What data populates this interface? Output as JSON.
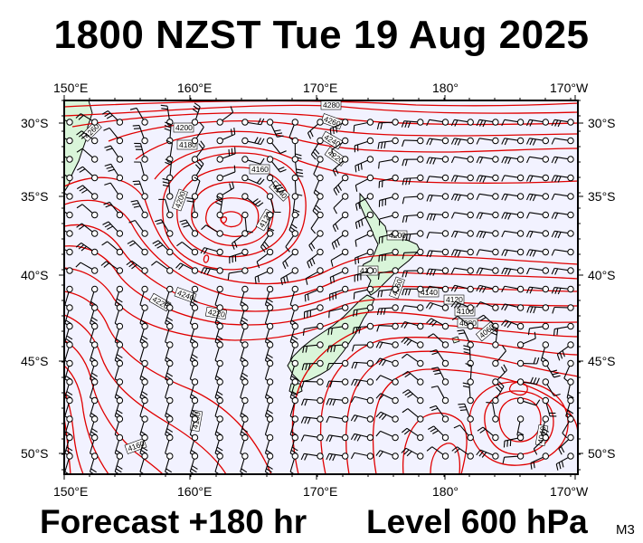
{
  "header": {
    "title": "1800 NZST Tue 19 Aug 2025"
  },
  "footer": {
    "forecast": "Forecast +180 hr",
    "level": "Level 600 hPa",
    "model": "M3"
  },
  "colors": {
    "contour": "#e00000",
    "ocean": "#f2f2ff",
    "land": "#d9f5d9",
    "coast": "#000000",
    "barb": "#000000"
  },
  "map": {
    "lon_labels": [
      "150°E",
      "160°E",
      "170°E",
      "180°",
      "170°W"
    ],
    "lat_labels": [
      "30°S",
      "35°S",
      "40°S",
      "45°S",
      "50°S"
    ],
    "contour_labels": [
      "4280",
      "4260",
      "4240",
      "4220",
      "4200",
      "4180",
      "4160",
      "4140",
      "4120",
      "4100",
      "4080",
      "4060",
      "4040",
      "4200",
      "4180",
      "4160",
      "4140",
      "4120",
      "4200",
      "4260",
      "4240",
      "4220",
      "4220",
      "4180",
      "4160"
    ]
  }
}
